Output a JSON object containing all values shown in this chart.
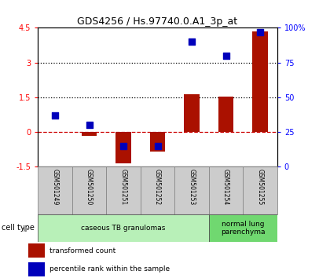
{
  "title": "GDS4256 / Hs.97740.0.A1_3p_at",
  "samples": [
    "GSM501249",
    "GSM501250",
    "GSM501251",
    "GSM501252",
    "GSM501253",
    "GSM501254",
    "GSM501255"
  ],
  "transformed_count": [
    0.0,
    -0.15,
    -1.35,
    -0.85,
    1.62,
    1.52,
    4.35
  ],
  "percentile_rank": [
    37,
    30,
    15,
    15,
    90,
    80,
    97
  ],
  "ylim_left": [
    -1.5,
    4.5
  ],
  "ylim_right": [
    0,
    100
  ],
  "yticks_left": [
    -1.5,
    0,
    1.5,
    3.0,
    4.5
  ],
  "ytick_labels_left": [
    "-1.5",
    "0",
    "1.5",
    "3",
    "4.5"
  ],
  "yticks_right": [
    0,
    25,
    50,
    75,
    100
  ],
  "ytick_labels_right": [
    "0",
    "25",
    "50",
    "75",
    "100%"
  ],
  "hlines": [
    0.0,
    1.5,
    3.0
  ],
  "hline_styles": [
    "dashed",
    "dotted",
    "dotted"
  ],
  "hline_colors": [
    "#cc0000",
    "#000000",
    "#000000"
  ],
  "cell_type_groups": [
    {
      "label": "caseous TB granulomas",
      "start": 0,
      "end": 5,
      "color": "#b8f0b8"
    },
    {
      "label": "normal lung\nparenchyma",
      "start": 5,
      "end": 7,
      "color": "#70d870"
    }
  ],
  "cell_type_label": "cell type",
  "bar_color": "#aa1100",
  "dot_color": "#0000bb",
  "bar_width": 0.45,
  "dot_size": 40,
  "legend_items": [
    {
      "color": "#aa1100",
      "label": "transformed count"
    },
    {
      "color": "#0000bb",
      "label": "percentile rank within the sample"
    }
  ],
  "bg_color": "#ffffff",
  "plot_bg_color": "#ffffff"
}
